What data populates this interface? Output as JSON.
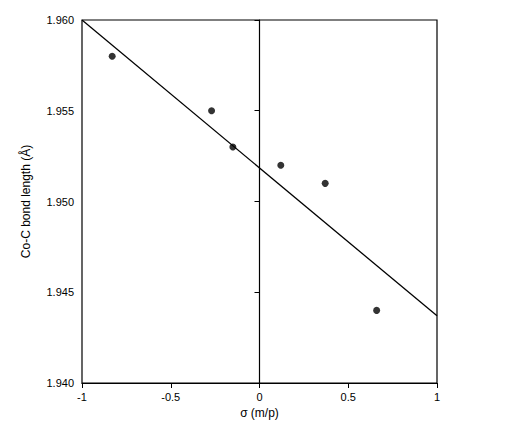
{
  "chart_data": {
    "type": "scatter",
    "x_label": "σ (m/p)",
    "y_label": "Co-C bond length (Å)",
    "series": [
      {
        "type": "scatter",
        "color": "#000000",
        "marker": "circle",
        "x": [
          -0.83,
          -0.27,
          -0.15,
          0.12,
          0.37,
          0.66
        ],
        "values": [
          1.958,
          1.955,
          1.953,
          1.952,
          1.951,
          1.944
        ]
      },
      {
        "type": "line",
        "color": "#000000",
        "line_style": "solid",
        "x": [
          -1,
          1
        ],
        "values": [
          1.96,
          1.9437
        ]
      }
    ],
    "xlim": [
      -1,
      1
    ],
    "xticks": [
      -1,
      -0.5,
      0,
      0.5,
      1
    ],
    "ylim": [
      1.94,
      1.96
    ],
    "yticks": [
      {
        "value": 1.94,
        "label": "1.940"
      },
      1.945,
      {
        "value": 1.95,
        "label": "1.950"
      },
      1.955,
      {
        "value": 1.96,
        "label": "1.960"
      }
    ],
    "grid": false
  }
}
